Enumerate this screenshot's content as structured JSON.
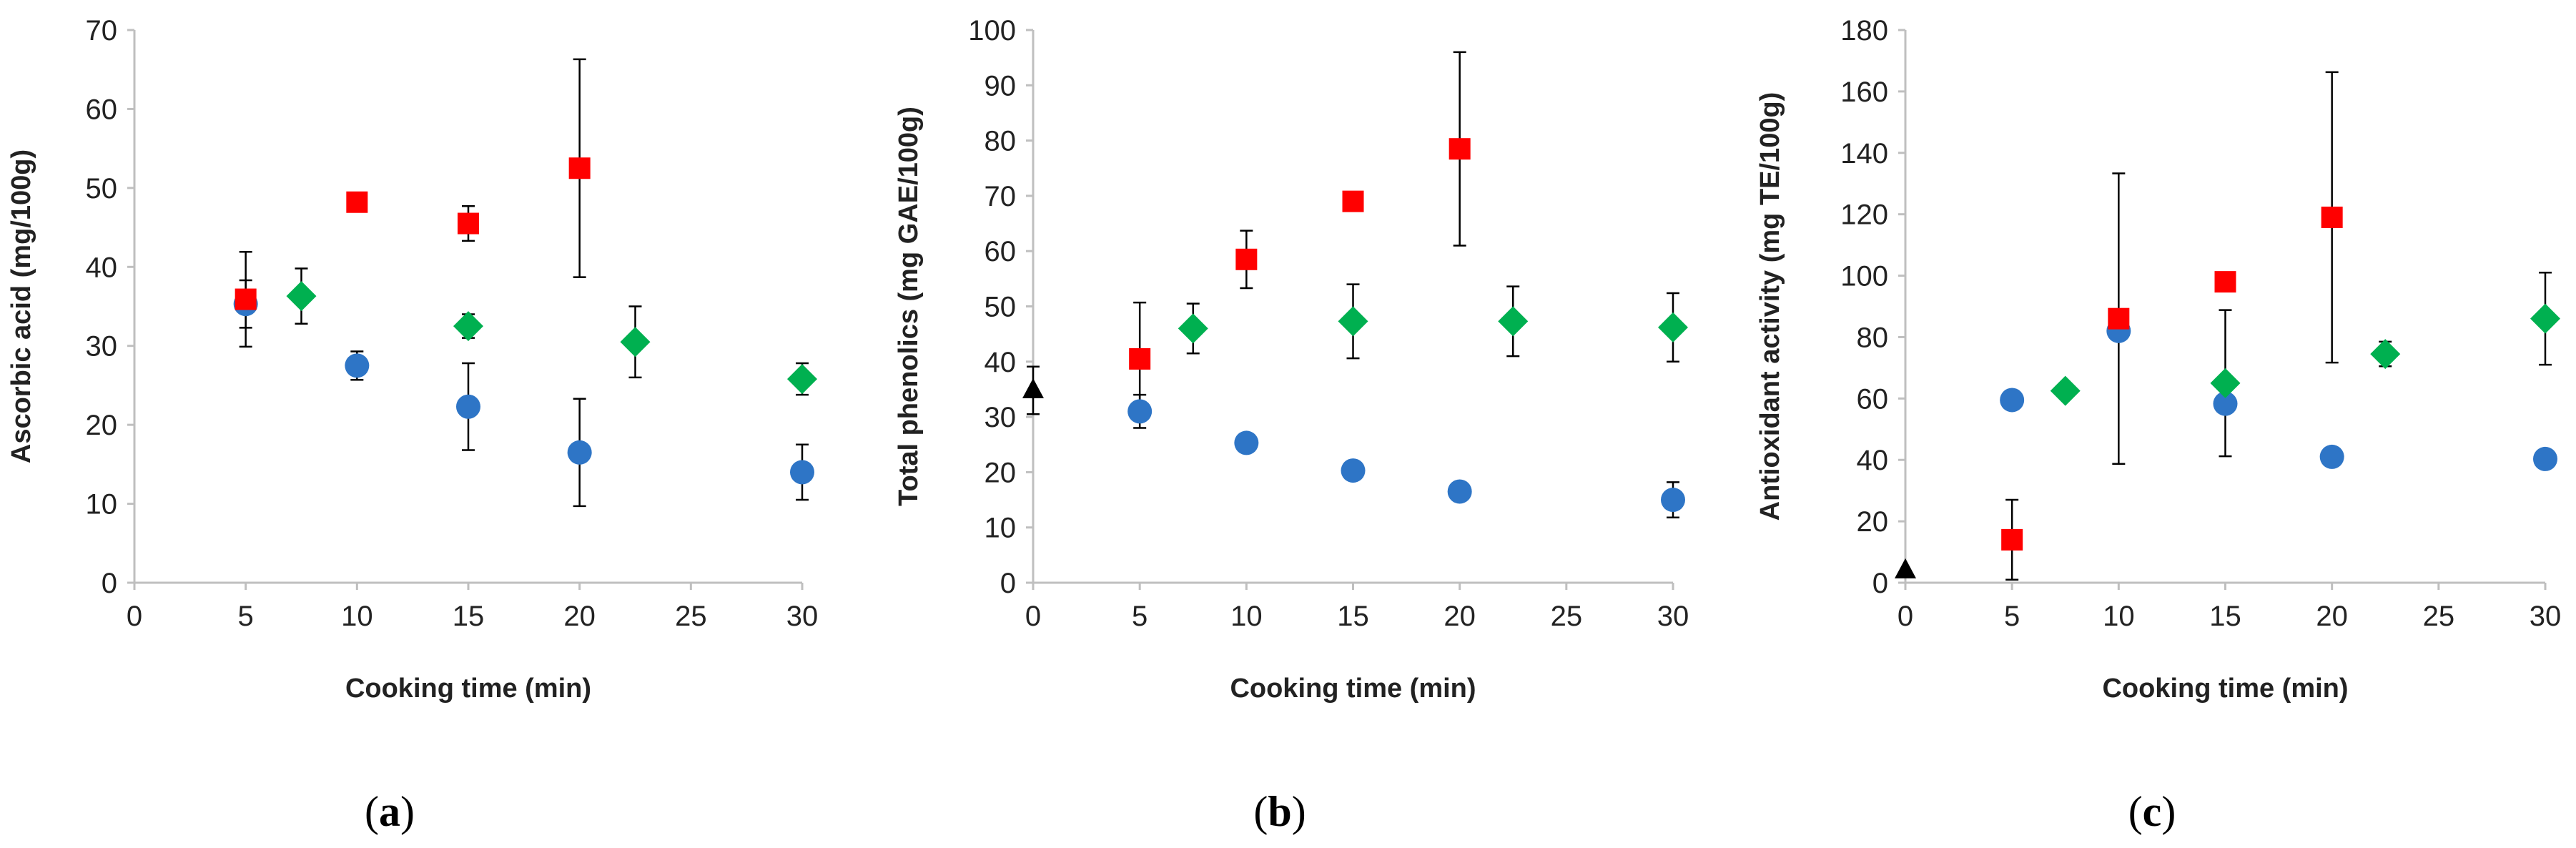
{
  "chart_data": [
    {
      "type": "scatter",
      "panel_label": "a",
      "xlabel": "Cooking time (min)",
      "ylabel": "Ascorbic acid (mg/100g)",
      "xlim": [
        0,
        30
      ],
      "ylim": [
        0,
        70
      ],
      "x_ticks": [
        "0",
        "5",
        "10",
        "15",
        "20",
        "25",
        "30"
      ],
      "y_ticks": [
        "0",
        "10",
        "20",
        "30",
        "40",
        "50",
        "60",
        "70"
      ],
      "grid": false,
      "legend": "none",
      "series": [
        {
          "marker": "circle",
          "color": "#2e75c6",
          "points": [
            {
              "x": 5,
              "y": 35.3,
              "err": 3.0
            },
            {
              "x": 10,
              "y": 27.5,
              "err": 1.8
            },
            {
              "x": 15,
              "y": 22.3,
              "err": 5.5
            },
            {
              "x": 20,
              "y": 16.5,
              "err": 6.8
            },
            {
              "x": 30,
              "y": 14.0,
              "err": 3.5
            }
          ]
        },
        {
          "marker": "square",
          "color": "#ff0000",
          "points": [
            {
              "x": 5,
              "y": 35.9,
              "err": 6.0
            },
            {
              "x": 10,
              "y": 48.2,
              "err": 1.0
            },
            {
              "x": 15,
              "y": 45.5,
              "err": 2.2
            },
            {
              "x": 20,
              "y": 52.5,
              "err": 13.8
            }
          ]
        },
        {
          "marker": "diamond",
          "color": "#00b050",
          "points": [
            {
              "x": 7.5,
              "y": 36.3,
              "err": 3.5
            },
            {
              "x": 15,
              "y": 32.5,
              "err": 1.5
            },
            {
              "x": 22.5,
              "y": 30.5,
              "err": 4.5
            },
            {
              "x": 30,
              "y": 25.8,
              "err": 2.0
            }
          ]
        }
      ]
    },
    {
      "type": "scatter",
      "panel_label": "b",
      "xlabel": "Cooking time (min)",
      "ylabel": "Total phenolics (mg GAE/100g)",
      "xlim": [
        0,
        30
      ],
      "ylim": [
        0,
        100
      ],
      "x_ticks": [
        "0",
        "5",
        "10",
        "15",
        "20",
        "25",
        "30"
      ],
      "y_ticks": [
        "0",
        "10",
        "20",
        "30",
        "40",
        "50",
        "60",
        "70",
        "80",
        "90",
        "100"
      ],
      "grid": false,
      "legend": "none",
      "series": [
        {
          "marker": "triangle",
          "color": "#000000",
          "points": [
            {
              "x": 0,
              "y": 34.8,
              "err": 4.3
            }
          ]
        },
        {
          "marker": "circle",
          "color": "#2e75c6",
          "points": [
            {
              "x": 5,
              "y": 31.0,
              "err": 3.0
            },
            {
              "x": 10,
              "y": 25.3,
              "err": 0
            },
            {
              "x": 15,
              "y": 20.3,
              "err": 0
            },
            {
              "x": 20,
              "y": 16.5,
              "err": 0
            },
            {
              "x": 30,
              "y": 15.0,
              "err": 3.2
            }
          ]
        },
        {
          "marker": "square",
          "color": "#ff0000",
          "points": [
            {
              "x": 5,
              "y": 40.5,
              "err": 10.2
            },
            {
              "x": 10,
              "y": 58.5,
              "err": 5.2
            },
            {
              "x": 15,
              "y": 69.0,
              "err": 0
            },
            {
              "x": 20,
              "y": 78.5,
              "err": 17.5
            }
          ]
        },
        {
          "marker": "diamond",
          "color": "#00b050",
          "points": [
            {
              "x": 7.5,
              "y": 46.0,
              "err": 4.5
            },
            {
              "x": 15,
              "y": 47.3,
              "err": 6.7
            },
            {
              "x": 22.5,
              "y": 47.3,
              "err": 6.3
            },
            {
              "x": 30,
              "y": 46.2,
              "err": 6.2
            }
          ]
        }
      ]
    },
    {
      "type": "scatter",
      "panel_label": "c",
      "xlabel": "Cooking time (min)",
      "ylabel": "Antioxidant activity (mg TE/100g)",
      "xlim": [
        0,
        30
      ],
      "ylim": [
        0,
        180
      ],
      "x_ticks": [
        "0",
        "5",
        "10",
        "15",
        "20",
        "25",
        "30"
      ],
      "y_ticks": [
        "0",
        "20",
        "40",
        "60",
        "80",
        "100",
        "120",
        "140",
        "160",
        "180"
      ],
      "grid": false,
      "legend": "none",
      "series": [
        {
          "marker": "triangle",
          "color": "#000000",
          "points": [
            {
              "x": 0,
              "y": 4.0,
              "err": 0
            }
          ]
        },
        {
          "marker": "circle",
          "color": "#2e75c6",
          "points": [
            {
              "x": 5,
              "y": 59.5,
              "err": 0
            },
            {
              "x": 10,
              "y": 82.0,
              "err": 0
            },
            {
              "x": 15,
              "y": 58.3,
              "err": 0
            },
            {
              "x": 20,
              "y": 41.0,
              "err": 3.0
            },
            {
              "x": 30,
              "y": 40.3,
              "err": 0
            }
          ]
        },
        {
          "marker": "square",
          "color": "#ff0000",
          "points": [
            {
              "x": 5,
              "y": 14.0,
              "err": 13.0
            },
            {
              "x": 10,
              "y": 86.0,
              "err": 47.3
            },
            {
              "x": 15,
              "y": 98.0,
              "err": 0
            },
            {
              "x": 20,
              "y": 119.0,
              "err": 47.3
            }
          ]
        },
        {
          "marker": "diamond",
          "color": "#00b050",
          "points": [
            {
              "x": 7.5,
              "y": 62.5,
              "err": 0
            },
            {
              "x": 15,
              "y": 65.0,
              "err": 23.8
            },
            {
              "x": 22.5,
              "y": 74.5,
              "err": 4.0
            },
            {
              "x": 30,
              "y": 86.0,
              "err": 15.0
            }
          ]
        }
      ]
    }
  ]
}
